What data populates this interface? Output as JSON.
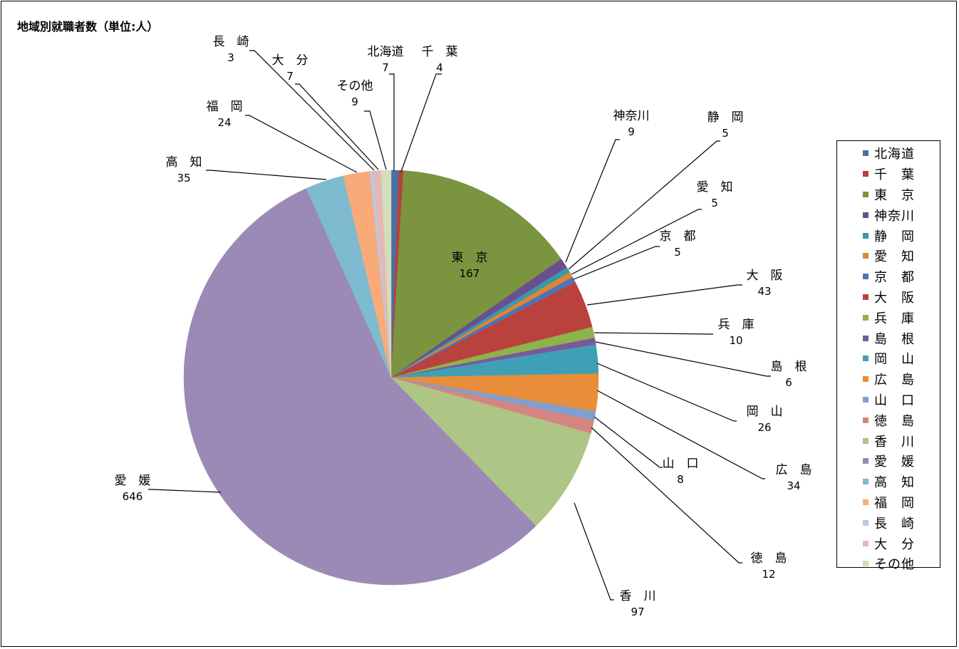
{
  "chart_data": {
    "type": "pie",
    "title": "地域別就職者数（単位:人）",
    "slices": [
      {
        "label": "北海道",
        "value": 7,
        "color": "#4a6fa5"
      },
      {
        "label": "千　葉",
        "value": 4,
        "color": "#b8403c"
      },
      {
        "label": "東　京",
        "value": 167,
        "color": "#7b9440"
      },
      {
        "label": "神奈川",
        "value": 9,
        "color": "#6a4f8e"
      },
      {
        "label": "静　岡",
        "value": 5,
        "color": "#3a98ad"
      },
      {
        "label": "愛　知",
        "value": 5,
        "color": "#e0852f"
      },
      {
        "label": "京　都",
        "value": 5,
        "color": "#4b76b8"
      },
      {
        "label": "大　阪",
        "value": 43,
        "color": "#b9423f"
      },
      {
        "label": "兵　庫",
        "value": 10,
        "color": "#8db34a"
      },
      {
        "label": "島　根",
        "value": 6,
        "color": "#7a58a0"
      },
      {
        "label": "岡　山",
        "value": 26,
        "color": "#3fa0b5"
      },
      {
        "label": "広　島",
        "value": 34,
        "color": "#e88d3a"
      },
      {
        "label": "山　口",
        "value": 8,
        "color": "#7e9fd0"
      },
      {
        "label": "徳　島",
        "value": 12,
        "color": "#d48581"
      },
      {
        "label": "香　川",
        "value": 97,
        "color": "#adc585"
      },
      {
        "label": "愛　媛",
        "value": 646,
        "color": "#9b89b6"
      },
      {
        "label": "高　知",
        "value": 35,
        "color": "#7ebbd0"
      },
      {
        "label": "福　岡",
        "value": 24,
        "color": "#f8ab79"
      },
      {
        "label": "長　崎",
        "value": 3,
        "color": "#b8c9e5"
      },
      {
        "label": "大　分",
        "value": 7,
        "color": "#e5b7b6"
      },
      {
        "label": "その他",
        "value": 9,
        "color": "#d3deb8"
      }
    ],
    "legend": "right"
  }
}
